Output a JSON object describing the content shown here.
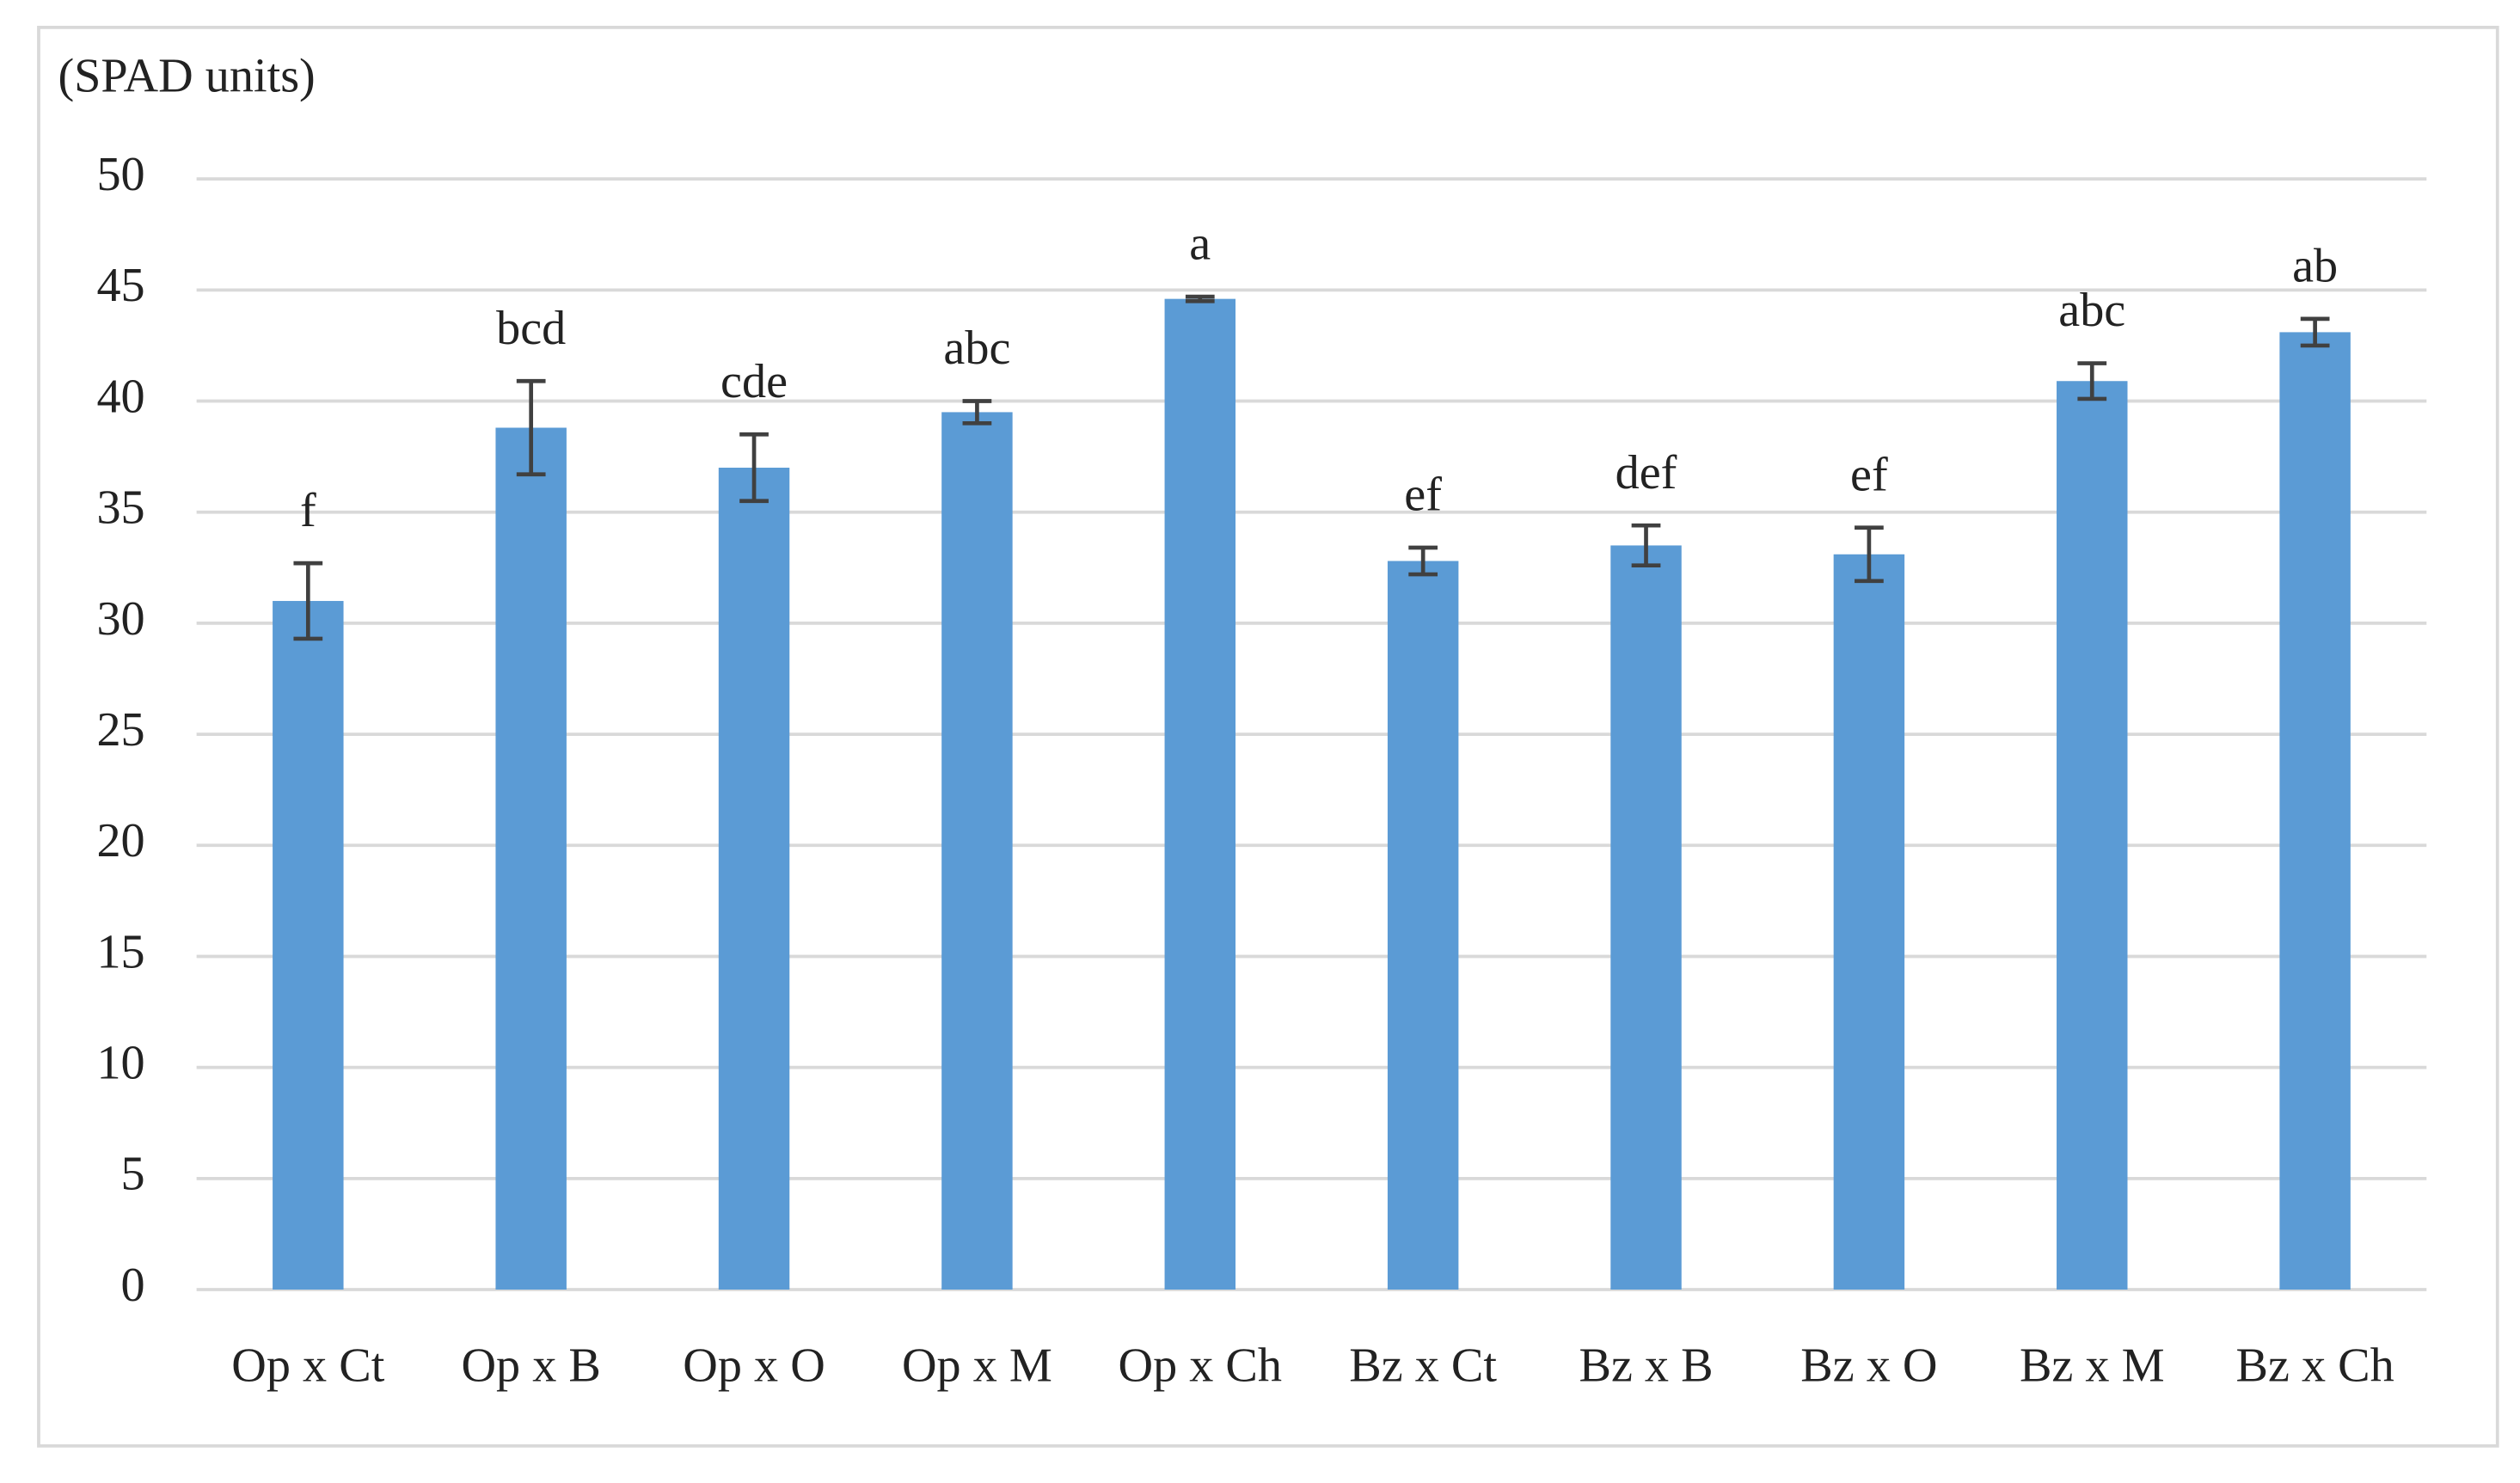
{
  "chart_data": {
    "type": "bar",
    "y_label": "(SPAD units)",
    "categories": [
      "Op x Ct",
      "Op x B",
      "Op x O",
      "Op x M",
      "Op x Ch",
      "Bz x Ct",
      "Bz x B",
      "Bz x O",
      "Bz x M",
      "Bz x Ch"
    ],
    "values": [
      31.0,
      38.8,
      37.0,
      39.5,
      44.6,
      32.8,
      33.5,
      33.1,
      40.9,
      43.1
    ],
    "errors": [
      1.7,
      2.1,
      1.5,
      0.5,
      0.1,
      0.6,
      0.9,
      1.2,
      0.8,
      0.6
    ],
    "letters": [
      "f",
      "bcd",
      "cde",
      "abc",
      "a",
      "ef",
      "def",
      "ef",
      "abc",
      "ab"
    ],
    "color": "#5b9bd5",
    "ylim": [
      0,
      50
    ],
    "yticks": [
      0,
      5,
      10,
      15,
      20,
      25,
      30,
      35,
      40,
      45,
      50
    ],
    "grid": true
  }
}
